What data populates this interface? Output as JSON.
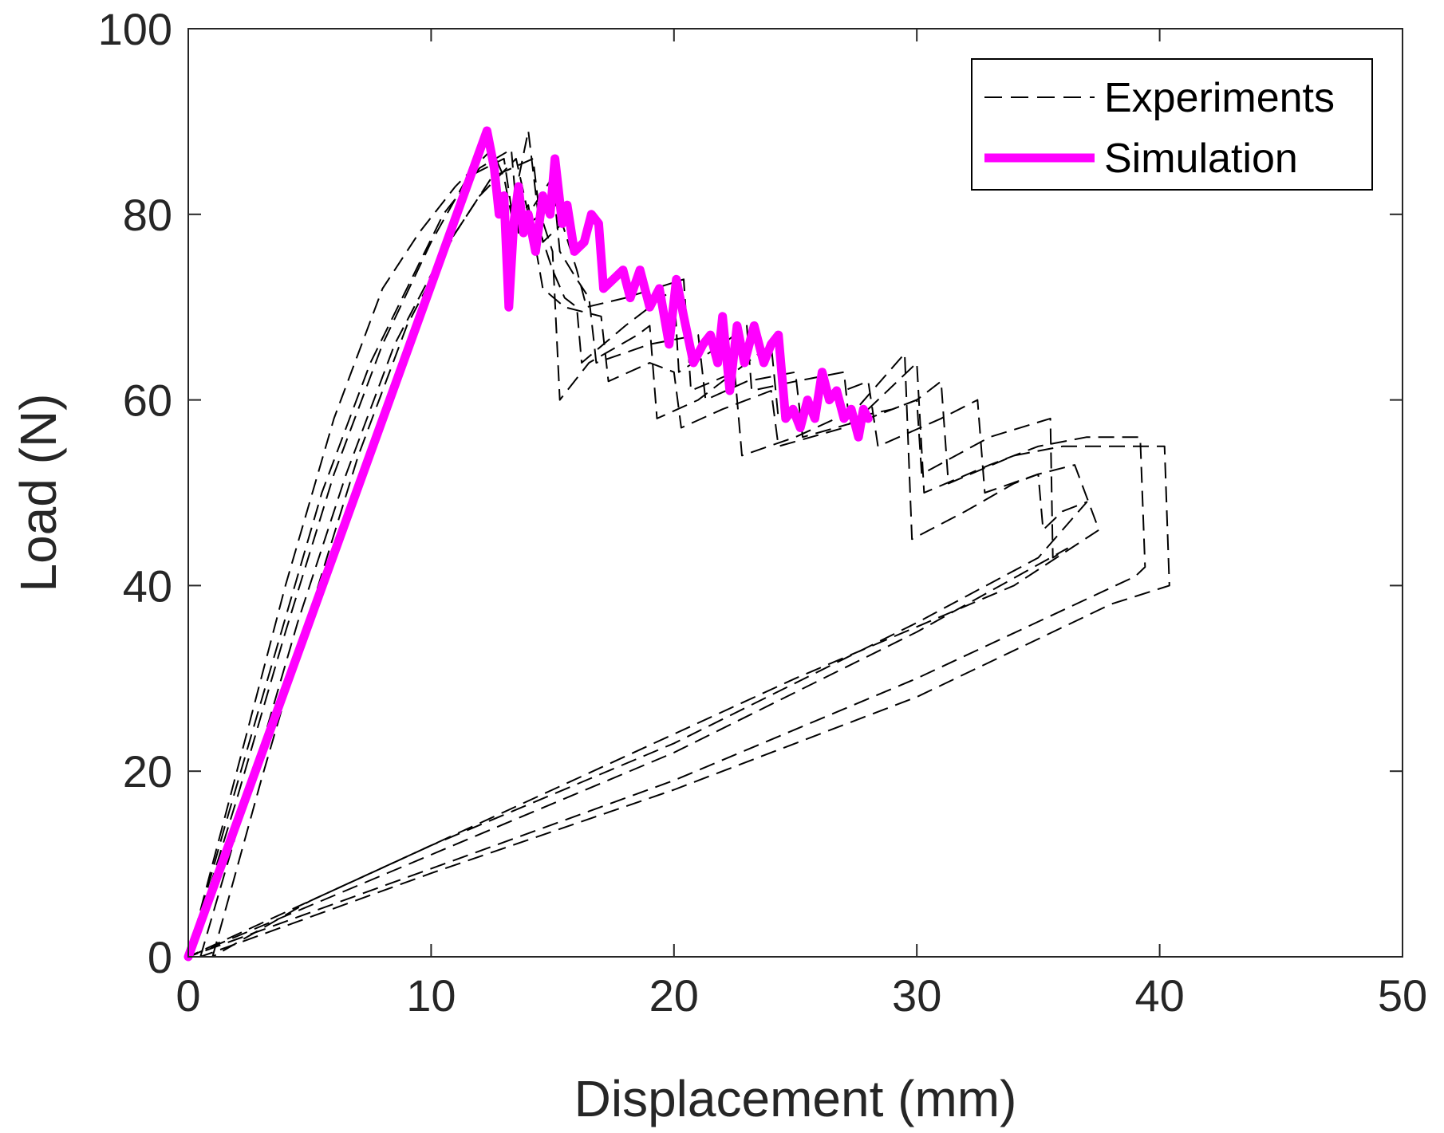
{
  "chart_data": {
    "type": "line",
    "title": "",
    "xlabel": "Displacement (mm)",
    "ylabel": "Load (N)",
    "xlim": [
      0,
      50
    ],
    "ylim": [
      0,
      100
    ],
    "xticks": [
      0,
      10,
      20,
      30,
      40,
      50
    ],
    "yticks": [
      0,
      20,
      40,
      60,
      80,
      100
    ],
    "grid": false,
    "legend_position": "top-right",
    "legend": [
      "Experiments",
      "Simulation"
    ],
    "series": [
      {
        "name": "Experiments",
        "style": "dashed",
        "color": "#000000",
        "curves": [
          [
            [
              0,
              0
            ],
            [
              2,
              20
            ],
            [
              4,
              40
            ],
            [
              6,
              58
            ],
            [
              8,
              72
            ],
            [
              9.5,
              78
            ],
            [
              11,
              83
            ],
            [
              12.5,
              87
            ],
            [
              13,
              84
            ],
            [
              13.3,
              80
            ],
            [
              14,
              89
            ],
            [
              14.5,
              78
            ],
            [
              15,
              74
            ],
            [
              15.5,
              71
            ],
            [
              16,
              70
            ],
            [
              16.2,
              64
            ],
            [
              18,
              68
            ],
            [
              20,
              72
            ],
            [
              20.2,
              63
            ],
            [
              22,
              66
            ],
            [
              23,
              68
            ],
            [
              23.2,
              61
            ],
            [
              25,
              62
            ],
            [
              27,
              63
            ],
            [
              27.2,
              58
            ],
            [
              29,
              59
            ],
            [
              30,
              60
            ],
            [
              30.2,
              52
            ],
            [
              33,
              56
            ],
            [
              35.5,
              58
            ],
            [
              35.6,
              43
            ],
            [
              36.2,
              44
            ],
            [
              30,
              35
            ],
            [
              20,
              22
            ],
            [
              10,
              11
            ],
            [
              0,
              0
            ]
          ],
          [
            [
              0,
              0
            ],
            [
              2,
              17
            ],
            [
              4,
              35
            ],
            [
              6,
              52
            ],
            [
              8,
              66
            ],
            [
              10,
              77
            ],
            [
              11.5,
              84
            ],
            [
              13,
              86
            ],
            [
              13.4,
              79
            ],
            [
              14,
              81
            ],
            [
              14.6,
              72
            ],
            [
              15.5,
              70
            ],
            [
              17,
              69
            ],
            [
              17.3,
              62
            ],
            [
              19,
              64
            ],
            [
              20,
              63
            ],
            [
              20.3,
              57
            ],
            [
              22,
              59
            ],
            [
              24,
              61
            ],
            [
              24.3,
              55
            ],
            [
              27,
              57
            ],
            [
              28,
              59
            ],
            [
              30,
              64
            ],
            [
              30.3,
              50
            ],
            [
              33,
              53
            ],
            [
              35,
              55
            ],
            [
              37,
              56
            ],
            [
              39.2,
              56
            ],
            [
              39.4,
              42
            ],
            [
              39,
              41
            ],
            [
              30,
              30
            ],
            [
              20,
              19
            ],
            [
              10,
              9.5
            ],
            [
              0,
              0
            ]
          ],
          [
            [
              0.5,
              0
            ],
            [
              2.5,
              18
            ],
            [
              4.5,
              36
            ],
            [
              6.5,
              52
            ],
            [
              8.5,
              66
            ],
            [
              10.5,
              76
            ],
            [
              12,
              82
            ],
            [
              13.5,
              86
            ],
            [
              14,
              80
            ],
            [
              15,
              84
            ],
            [
              15.3,
              76
            ],
            [
              16,
              73
            ],
            [
              16.5,
              71
            ],
            [
              16.8,
              64
            ],
            [
              19,
              66
            ],
            [
              21,
              67
            ],
            [
              21.3,
              60
            ],
            [
              23,
              62
            ],
            [
              25,
              63
            ],
            [
              25.3,
              56
            ],
            [
              28,
              58
            ],
            [
              30,
              60
            ],
            [
              31,
              62
            ],
            [
              31.3,
              51
            ],
            [
              34,
              54
            ],
            [
              36,
              55
            ],
            [
              38,
              55
            ],
            [
              40.2,
              55
            ],
            [
              40.4,
              40
            ],
            [
              38,
              38
            ],
            [
              30,
              28
            ],
            [
              20,
              18
            ],
            [
              10,
              9
            ],
            [
              0.5,
              0
            ]
          ],
          [
            [
              0,
              0
            ],
            [
              1.5,
              14
            ],
            [
              3.5,
              32
            ],
            [
              5.5,
              50
            ],
            [
              7.5,
              64
            ],
            [
              9,
              72
            ],
            [
              10.5,
              80
            ],
            [
              12,
              85
            ],
            [
              13.3,
              87
            ],
            [
              13.6,
              78
            ],
            [
              14.5,
              80
            ],
            [
              15,
              76
            ],
            [
              15.3,
              60
            ],
            [
              16.5,
              64
            ],
            [
              18.5,
              67
            ],
            [
              19,
              68
            ],
            [
              19.3,
              58
            ],
            [
              21,
              60
            ],
            [
              22.5,
              63
            ],
            [
              22.8,
              54
            ],
            [
              25,
              56
            ],
            [
              27.5,
              59
            ],
            [
              29.5,
              65
            ],
            [
              29.8,
              45
            ],
            [
              32,
              48
            ],
            [
              34,
              51
            ],
            [
              35,
              52
            ],
            [
              35.2,
              46
            ],
            [
              36,
              48
            ],
            [
              37,
              49
            ],
            [
              35,
              43
            ],
            [
              30,
              36
            ],
            [
              20,
              23
            ],
            [
              10,
              12
            ],
            [
              0,
              0
            ]
          ],
          [
            [
              1,
              0
            ],
            [
              3,
              19
            ],
            [
              5,
              37
            ],
            [
              7,
              54
            ],
            [
              9,
              68
            ],
            [
              11,
              78
            ],
            [
              12.5,
              84
            ],
            [
              14.2,
              86
            ],
            [
              14.6,
              77
            ],
            [
              15.4,
              79
            ],
            [
              16,
              74
            ],
            [
              16.4,
              70
            ],
            [
              18,
              71
            ],
            [
              20.4,
              73
            ],
            [
              20.7,
              61
            ],
            [
              22.5,
              63
            ],
            [
              24,
              66
            ],
            [
              24.3,
              58
            ],
            [
              26,
              60
            ],
            [
              28,
              62
            ],
            [
              28.4,
              55
            ],
            [
              31,
              58
            ],
            [
              32.5,
              60
            ],
            [
              32.8,
              50
            ],
            [
              35,
              52
            ],
            [
              36.5,
              53
            ],
            [
              37.5,
              46
            ],
            [
              34,
              40
            ],
            [
              25,
              30
            ],
            [
              15,
              18
            ],
            [
              5,
              6
            ],
            [
              1,
              0
            ]
          ]
        ]
      },
      {
        "name": "Simulation",
        "style": "solid",
        "color": "#FF00FF",
        "points": [
          [
            0,
            0
          ],
          [
            12.3,
            89
          ],
          [
            12.6,
            85
          ],
          [
            12.8,
            80
          ],
          [
            13,
            82
          ],
          [
            13.2,
            70
          ],
          [
            13.4,
            79
          ],
          [
            13.6,
            83
          ],
          [
            13.8,
            78
          ],
          [
            14,
            80
          ],
          [
            14.3,
            76
          ],
          [
            14.6,
            82
          ],
          [
            14.9,
            80
          ],
          [
            15.1,
            86
          ],
          [
            15.4,
            79
          ],
          [
            15.6,
            81
          ],
          [
            15.9,
            76
          ],
          [
            16.3,
            77
          ],
          [
            16.6,
            80
          ],
          [
            16.9,
            79
          ],
          [
            17.1,
            72
          ],
          [
            17.5,
            73
          ],
          [
            17.9,
            74
          ],
          [
            18.2,
            71
          ],
          [
            18.6,
            74
          ],
          [
            19,
            70
          ],
          [
            19.4,
            72
          ],
          [
            19.8,
            66
          ],
          [
            20.1,
            73
          ],
          [
            20.4,
            69
          ],
          [
            20.8,
            64
          ],
          [
            21.2,
            66
          ],
          [
            21.5,
            67
          ],
          [
            21.8,
            64
          ],
          [
            22,
            69
          ],
          [
            22.3,
            61
          ],
          [
            22.6,
            68
          ],
          [
            22.9,
            64
          ],
          [
            23.3,
            68
          ],
          [
            23.7,
            64
          ],
          [
            24,
            66
          ],
          [
            24.3,
            67
          ],
          [
            24.6,
            58
          ],
          [
            24.9,
            59
          ],
          [
            25.2,
            57
          ],
          [
            25.5,
            60
          ],
          [
            25.8,
            58
          ],
          [
            26.1,
            63
          ],
          [
            26.4,
            60
          ],
          [
            26.7,
            61
          ],
          [
            27,
            58
          ],
          [
            27.3,
            59
          ],
          [
            27.6,
            56
          ],
          [
            27.8,
            59
          ],
          [
            28,
            58
          ]
        ]
      }
    ]
  }
}
